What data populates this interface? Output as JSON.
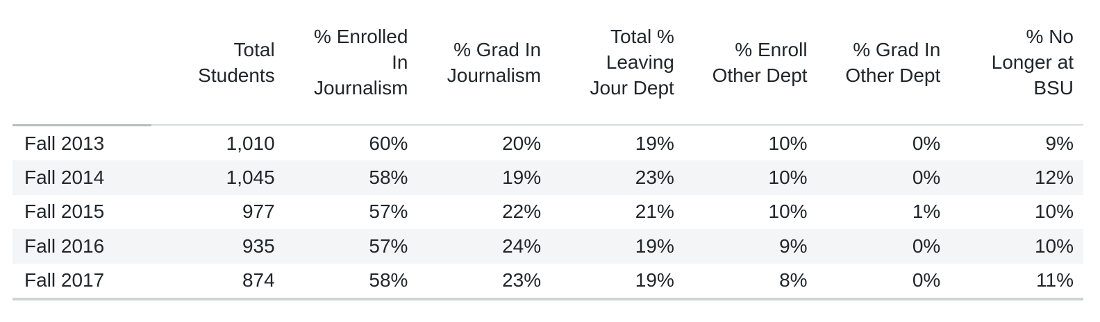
{
  "chart_data": {
    "type": "table",
    "title": "",
    "corner_label": "",
    "columns": [
      "Total\nStudents",
      "% Enrolled\nIn\nJournalism",
      "% Grad In\nJournalism",
      "Total %\nLeaving\nJour Dept",
      "% Enroll\nOther Dept",
      "% Grad In\nOther Dept",
      "% No\nLonger at\nBSU"
    ],
    "rows": [
      {
        "label": "Fall 2013",
        "values": [
          "1,010",
          "60%",
          "20%",
          "19%",
          "10%",
          "0%",
          "9%"
        ]
      },
      {
        "label": "Fall 2014",
        "values": [
          "1,045",
          "58%",
          "19%",
          "23%",
          "10%",
          "0%",
          "12%"
        ]
      },
      {
        "label": "Fall 2015",
        "values": [
          "977",
          "57%",
          "22%",
          "21%",
          "10%",
          "1%",
          "10%"
        ]
      },
      {
        "label": "Fall 2016",
        "values": [
          "935",
          "57%",
          "24%",
          "19%",
          "9%",
          "0%",
          "10%"
        ]
      },
      {
        "label": "Fall 2017",
        "values": [
          "874",
          "58%",
          "23%",
          "19%",
          "8%",
          "0%",
          "11%"
        ]
      }
    ],
    "layout": {
      "banded_rows": [
        "Fall 2014",
        "Fall 2016"
      ],
      "grid": "off",
      "alignment": "right"
    },
    "colors": {
      "text": "#21262b",
      "row_band": "#f4f5f6",
      "header_rule_dark": "#b5bfbc",
      "header_rule_light": "#d7dddb",
      "bottom_rule": "#cbd5d1",
      "background": "#ffffff"
    }
  }
}
